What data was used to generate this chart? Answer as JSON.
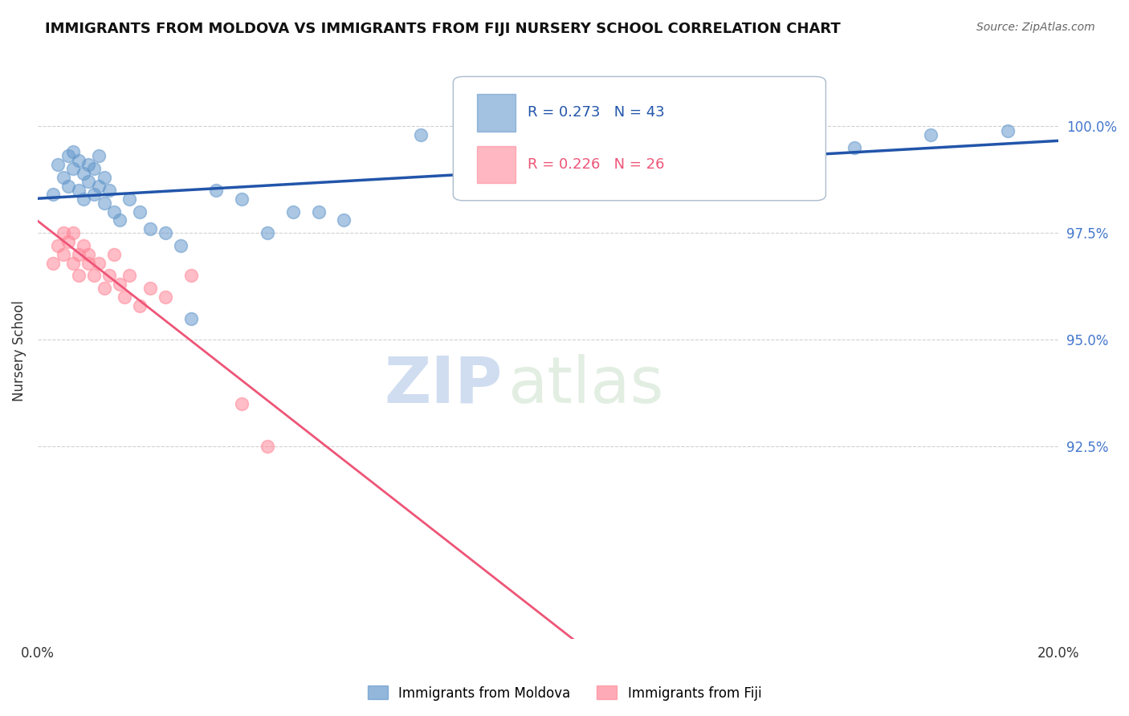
{
  "title": "IMMIGRANTS FROM MOLDOVA VS IMMIGRANTS FROM FIJI NURSERY SCHOOL CORRELATION CHART",
  "source": "Source: ZipAtlas.com",
  "ylabel": "Nursery School",
  "legend_moldova": "Immigrants from Moldova",
  "legend_fiji": "Immigrants from Fiji",
  "r_moldova": "R = 0.273",
  "n_moldova": "N = 43",
  "r_fiji": "R = 0.226",
  "n_fiji": "N = 26",
  "xlim": [
    0.0,
    0.2
  ],
  "ylim": [
    88.0,
    101.5
  ],
  "blue_color": "#6699CC",
  "pink_color": "#FF8899",
  "line_blue": "#2255AA",
  "line_pink": "#EE5577",
  "moldova_x": [
    0.003,
    0.004,
    0.005,
    0.006,
    0.006,
    0.007,
    0.007,
    0.008,
    0.008,
    0.009,
    0.009,
    0.01,
    0.01,
    0.011,
    0.011,
    0.012,
    0.012,
    0.013,
    0.013,
    0.014,
    0.015,
    0.016,
    0.018,
    0.02,
    0.022,
    0.025,
    0.028,
    0.03,
    0.035,
    0.04,
    0.045,
    0.05,
    0.055,
    0.06,
    0.075,
    0.085,
    0.095,
    0.11,
    0.125,
    0.145,
    0.16,
    0.175,
    0.19
  ],
  "moldova_y": [
    98.4,
    99.1,
    98.8,
    99.3,
    98.6,
    99.0,
    99.4,
    98.5,
    99.2,
    98.9,
    98.3,
    98.7,
    99.1,
    98.4,
    99.0,
    98.6,
    99.3,
    98.2,
    98.8,
    98.5,
    98.0,
    97.8,
    98.3,
    98.0,
    97.6,
    97.5,
    97.2,
    95.5,
    98.5,
    98.3,
    97.5,
    98.0,
    98.0,
    97.8,
    99.8,
    99.0,
    99.2,
    99.5,
    99.0,
    99.6,
    99.5,
    99.8,
    99.9
  ],
  "fiji_x": [
    0.003,
    0.004,
    0.005,
    0.005,
    0.006,
    0.007,
    0.007,
    0.008,
    0.008,
    0.009,
    0.01,
    0.01,
    0.011,
    0.012,
    0.013,
    0.014,
    0.015,
    0.016,
    0.017,
    0.018,
    0.02,
    0.022,
    0.025,
    0.03,
    0.04,
    0.045
  ],
  "fiji_y": [
    96.8,
    97.2,
    97.5,
    97.0,
    97.3,
    96.8,
    97.5,
    96.5,
    97.0,
    97.2,
    96.8,
    97.0,
    96.5,
    96.8,
    96.2,
    96.5,
    97.0,
    96.3,
    96.0,
    96.5,
    95.8,
    96.2,
    96.0,
    96.5,
    93.5,
    92.5
  ],
  "watermark_zip": "ZIP",
  "watermark_atlas": "atlas",
  "background_color": "#FFFFFF",
  "grid_color": "#CCCCCC"
}
